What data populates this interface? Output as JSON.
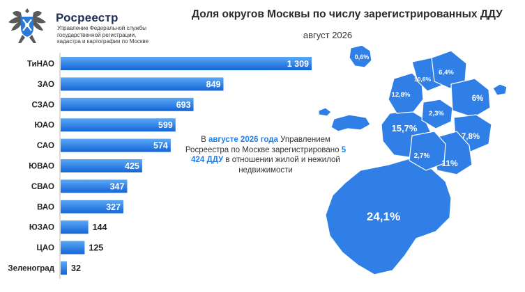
{
  "header": {
    "org_name": "Росреестр",
    "org_sub": [
      "Управление Федеральной службы",
      "государственной регистрации,",
      "кадастра и картографии по Москве"
    ],
    "title": "Доля округов Москвы по числу зарегистрированных ДДУ",
    "subtitle": "август 2026"
  },
  "note": {
    "part1": "В ",
    "highlight1": "августе 2026 года",
    "part2": " Управлением Росреестра по Москве зарегистрировано ",
    "highlight2": "5 424 ДДУ",
    "part3": " в отношении жилой и нежилой недвижимости"
  },
  "colors": {
    "bar_top": "#5aa8f5",
    "bar_bottom": "#1565d8",
    "map_fill": "#2f7fe6",
    "map_light": "#4e9af0",
    "map_border": "#ffffff",
    "highlight": "#1f7ee8"
  },
  "chart_data": [
    {
      "type": "bar",
      "orientation": "horizontal",
      "title": "Доля округов Москвы по числу зарегистрированных ДДУ",
      "subtitle": "август 2026",
      "categories": [
        "ТиНАО",
        "ЗАО",
        "СЗАО",
        "ЮАО",
        "САО",
        "ЮВАО",
        "СВАО",
        "ВАО",
        "ЮЗАО",
        "ЦАО",
        "Зеленоград"
      ],
      "values": [
        1309,
        849,
        693,
        599,
        574,
        425,
        347,
        327,
        144,
        125,
        32
      ],
      "value_labels": [
        "1 309",
        "849",
        "693",
        "599",
        "574",
        "425",
        "347",
        "327",
        "144",
        "125",
        "32"
      ],
      "xlim": [
        0,
        1309
      ],
      "grid": false,
      "legend": "none"
    },
    {
      "type": "map",
      "regions": [
        {
          "name": "ТиНАО",
          "label": "24,1%"
        },
        {
          "name": "ЗАО",
          "label": "15,7%"
        },
        {
          "name": "СЗАО",
          "label": "12,8%"
        },
        {
          "name": "ЮАО",
          "label": "11%"
        },
        {
          "name": "САО",
          "label": "10,6%"
        },
        {
          "name": "ЮВАО",
          "label": "7,8%"
        },
        {
          "name": "СВАО",
          "label": "6,4%"
        },
        {
          "name": "ВАО",
          "label": "6%"
        },
        {
          "name": "ЮЗАО",
          "label": "2,7%"
        },
        {
          "name": "ЦАО",
          "label": "2,3%"
        },
        {
          "name": "Зеленоград",
          "label": "0,6%"
        }
      ]
    }
  ]
}
